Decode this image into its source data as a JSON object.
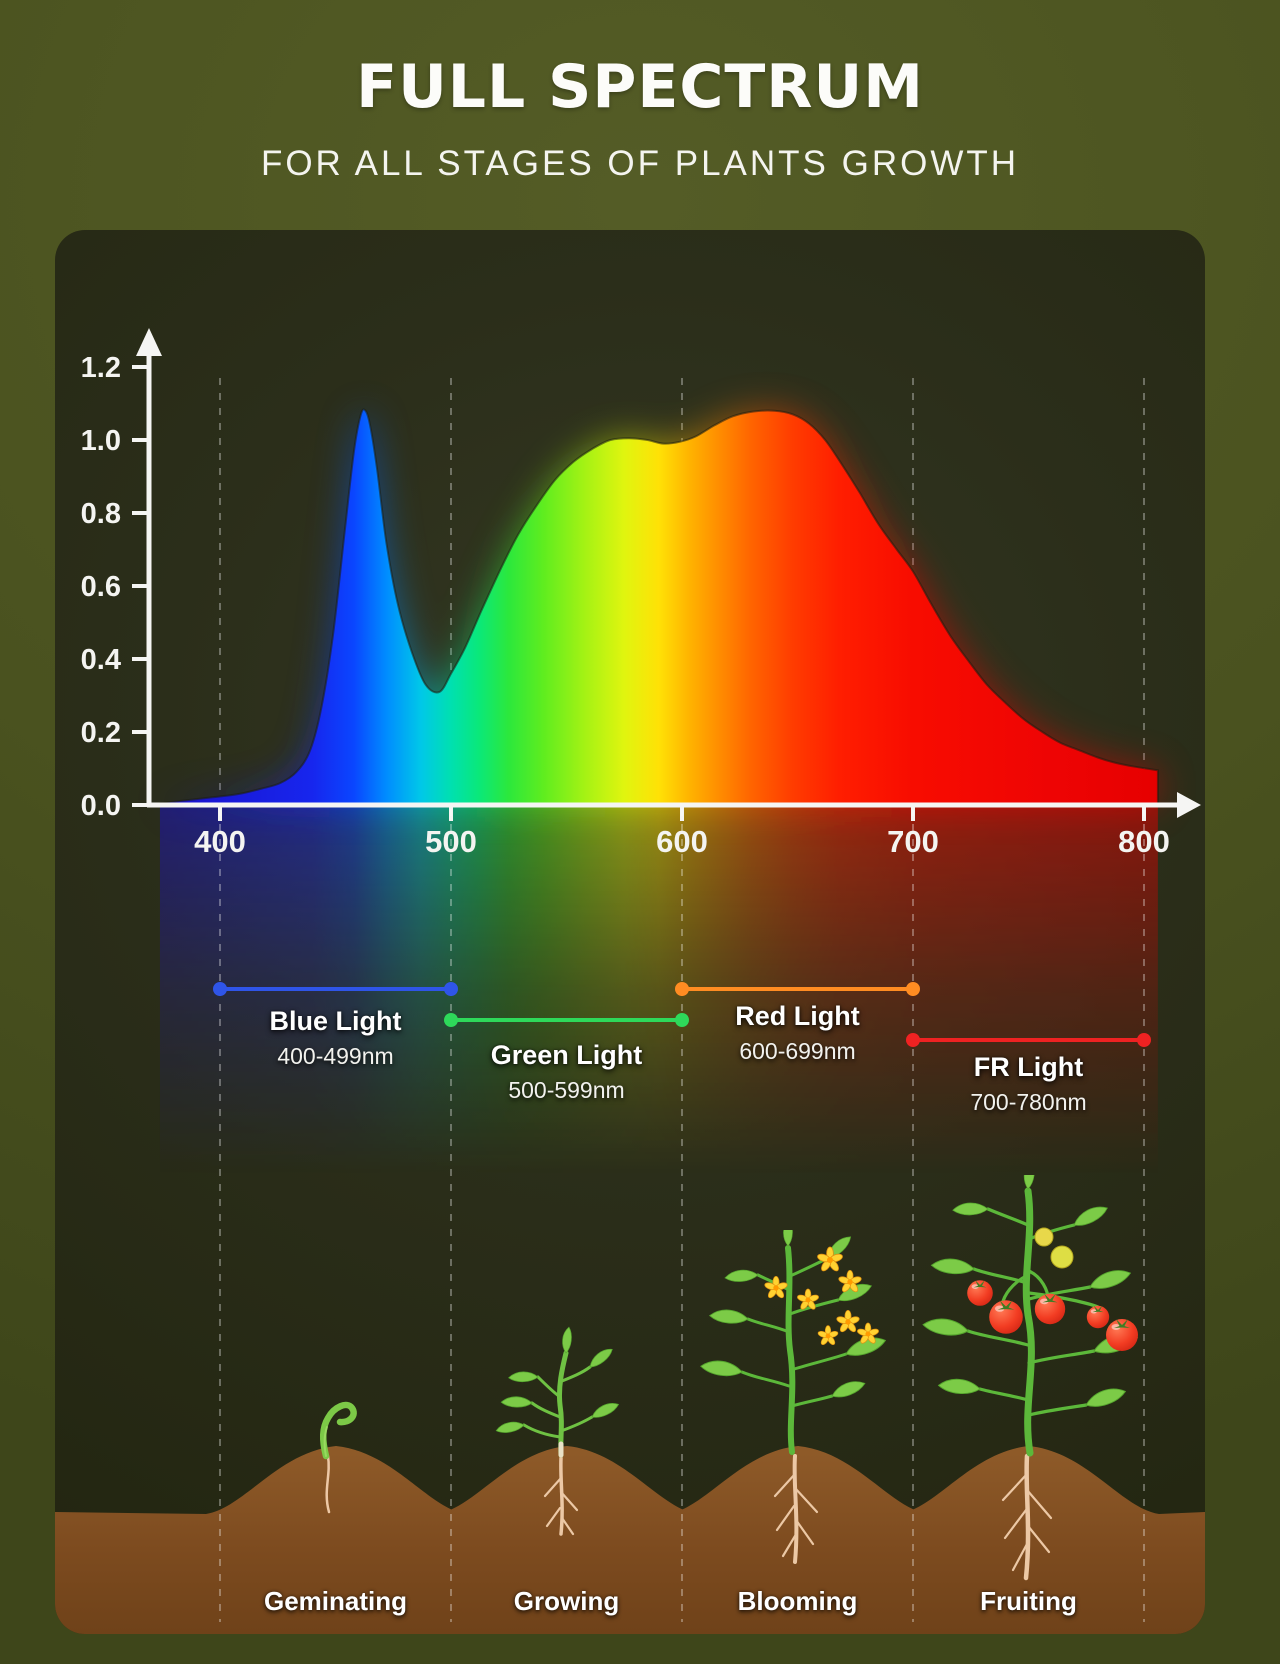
{
  "header": {
    "title": "FULL SPECTRUM",
    "subtitle": "FOR ALL STAGES OF PLANTS GROWTH"
  },
  "chart_data": {
    "type": "area",
    "xlim": [
      374,
      806
    ],
    "ylim": [
      0,
      1.2
    ],
    "x_ticks": [
      400,
      500,
      600,
      700,
      800
    ],
    "y_ticks": [
      "0.0",
      "0.2",
      "0.4",
      "0.6",
      "0.8",
      "1.0",
      "1.2"
    ],
    "grid": "dashed-vertical",
    "legend": "none",
    "series": [
      {
        "name": "spectral power distribution",
        "x": [
          374,
          395,
          408,
          418,
          426,
          433,
          439,
          444,
          449,
          454,
          458,
          461,
          463,
          465,
          468,
          472,
          477,
          483,
          489,
          495,
          500,
          506,
          513,
          521,
          529,
          537,
          545,
          553,
          561,
          569,
          577,
          585,
          592,
          599,
          606,
          614,
          622,
          631,
          640,
          648,
          655,
          662,
          669,
          677,
          685,
          693,
          700,
          708,
          716,
          724,
          732,
          740,
          748,
          756,
          764,
          772,
          780,
          788,
          796,
          806
        ],
        "y": [
          0.005,
          0.02,
          0.03,
          0.045,
          0.06,
          0.09,
          0.15,
          0.27,
          0.47,
          0.75,
          0.97,
          1.07,
          1.08,
          1.04,
          0.92,
          0.72,
          0.55,
          0.42,
          0.33,
          0.31,
          0.36,
          0.43,
          0.53,
          0.64,
          0.74,
          0.82,
          0.89,
          0.94,
          0.975,
          1.0,
          1.005,
          1.0,
          0.99,
          0.995,
          1.01,
          1.04,
          1.065,
          1.078,
          1.08,
          1.07,
          1.045,
          1.0,
          0.935,
          0.855,
          0.77,
          0.7,
          0.64,
          0.55,
          0.465,
          0.395,
          0.33,
          0.28,
          0.235,
          0.2,
          0.17,
          0.15,
          0.13,
          0.115,
          0.105,
          0.095
        ]
      }
    ],
    "gradient_stops": [
      {
        "wl": 374,
        "color": "#1b10c8"
      },
      {
        "wl": 440,
        "color": "#1726ee"
      },
      {
        "wl": 458,
        "color": "#0a46ff"
      },
      {
        "wl": 472,
        "color": "#008cff"
      },
      {
        "wl": 487,
        "color": "#00c8e8"
      },
      {
        "wl": 500,
        "color": "#00e0b0"
      },
      {
        "wl": 512,
        "color": "#0ae87a"
      },
      {
        "wl": 525,
        "color": "#2ce83c"
      },
      {
        "wl": 540,
        "color": "#5fed1f"
      },
      {
        "wl": 558,
        "color": "#a5f214"
      },
      {
        "wl": 575,
        "color": "#e0f50f"
      },
      {
        "wl": 590,
        "color": "#ffe106"
      },
      {
        "wl": 603,
        "color": "#ffb400"
      },
      {
        "wl": 616,
        "color": "#ff8d00"
      },
      {
        "wl": 630,
        "color": "#ff6400"
      },
      {
        "wl": 648,
        "color": "#ff3c00"
      },
      {
        "wl": 668,
        "color": "#ff1e00"
      },
      {
        "wl": 700,
        "color": "#f80c00"
      },
      {
        "wl": 760,
        "color": "#ee0404"
      },
      {
        "wl": 806,
        "color": "#e60000"
      }
    ]
  },
  "bands": [
    {
      "name": "Blue Light",
      "range": "400-499nm",
      "from_nm": 400,
      "to_nm": 499,
      "color": "#2f55e8"
    },
    {
      "name": "Green Light",
      "range": "500-599nm",
      "from_nm": 500,
      "to_nm": 599,
      "color": "#2ed95a"
    },
    {
      "name": "Red Light",
      "range": "600-699nm",
      "from_nm": 600,
      "to_nm": 699,
      "color": "#ff8c22"
    },
    {
      "name": "FR Light",
      "range": "700-780nm",
      "from_nm": 700,
      "to_nm": 780,
      "color": "#ef2222"
    }
  ],
  "stages": [
    {
      "label": "Geminating"
    },
    {
      "label": "Growing"
    },
    {
      "label": "Blooming"
    },
    {
      "label": "Fruiting"
    }
  ],
  "colors": {
    "page_background": "#4a521f",
    "panel_background": "#2b2e1a",
    "axis": "#f5f5f3",
    "grid_dash": "#ffffff",
    "soil": "#8a5527",
    "root": "#f2cfad",
    "leaf": "#7ccb47",
    "stem": "#5cb83a",
    "flower": "#ffd231",
    "tomato": "#e8261a"
  }
}
